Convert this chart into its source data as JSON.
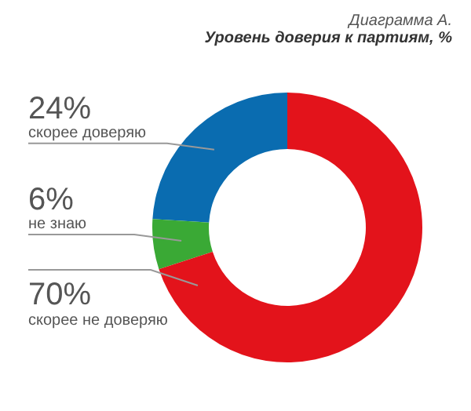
{
  "chart_data": {
    "type": "donut",
    "title": "Диаграмма А.",
    "subtitle": "Уровень доверия к партиям, %",
    "categories": [
      "скорее доверяю",
      "не знаю",
      "скорее не доверяю"
    ],
    "values": [
      24,
      6,
      70
    ],
    "colors": [
      "#0a6cb0",
      "#3aa935",
      "#e3131b"
    ],
    "value_labels": [
      "24%",
      "6%",
      "70%"
    ],
    "legend": false
  }
}
